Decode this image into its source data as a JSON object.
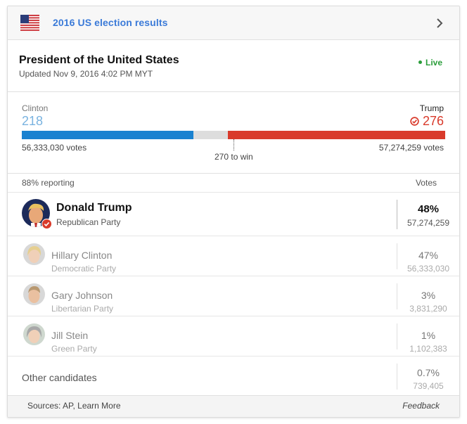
{
  "header": {
    "title": "2016 US election results",
    "flag_icon": "us-flag-icon",
    "chevron_icon": "chevron-right-icon"
  },
  "race": {
    "title": "President of the United States",
    "updated": "Updated Nov 9, 2016 4:02 PM MYT",
    "live_label": "Live"
  },
  "electoral": {
    "left": {
      "name": "Clinton",
      "ev": "218",
      "votes": "56,333,030 votes",
      "color": "#1a82d0",
      "ev_value": 218
    },
    "right": {
      "name": "Trump",
      "ev": "276",
      "votes": "57,274,259 votes",
      "color": "#d93a2b",
      "ev_value": 276
    },
    "total_ev": 538,
    "to_win": "270 to win"
  },
  "table": {
    "reporting": "88% reporting",
    "votes_header": "Votes",
    "candidates": [
      {
        "name": "Donald Trump",
        "party": "Republican Party",
        "pct": "48%",
        "votes": "57,274,259",
        "winner": true,
        "avatar_icon": "trump-avatar-icon"
      },
      {
        "name": "Hillary Clinton",
        "party": "Democratic Party",
        "pct": "47%",
        "votes": "56,333,030",
        "winner": false,
        "avatar_icon": "clinton-avatar-icon"
      },
      {
        "name": "Gary Johnson",
        "party": "Libertarian Party",
        "pct": "3%",
        "votes": "3,831,290",
        "winner": false,
        "avatar_icon": "johnson-avatar-icon"
      },
      {
        "name": "Jill Stein",
        "party": "Green Party",
        "pct": "1%",
        "votes": "1,102,383",
        "winner": false,
        "avatar_icon": "stein-avatar-icon"
      }
    ],
    "other": {
      "label": "Other candidates",
      "pct": "0.7%",
      "votes": "739,405"
    }
  },
  "footer": {
    "sources": "Sources: AP, Learn More",
    "feedback": "Feedback"
  }
}
